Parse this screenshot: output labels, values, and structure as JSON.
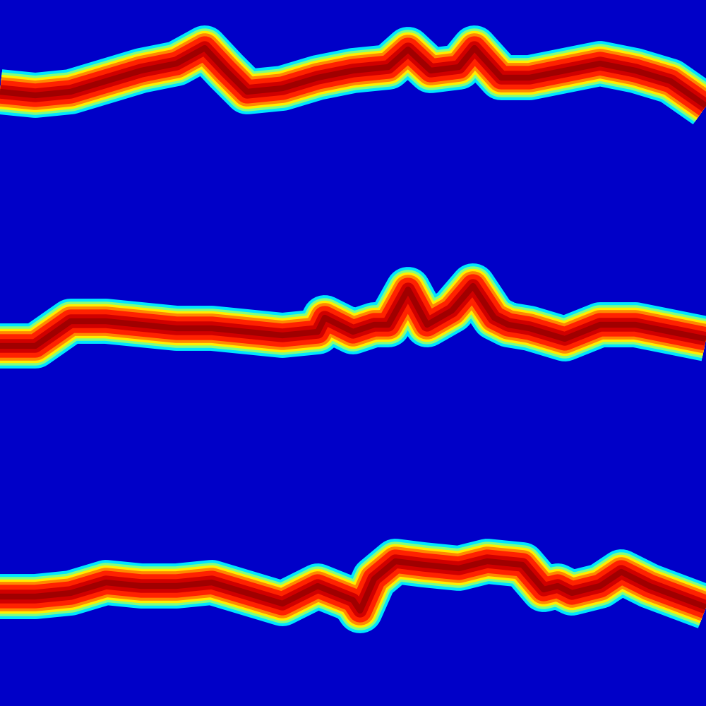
{
  "chart_data": {
    "type": "line",
    "xlim": [
      0,
      1000
    ],
    "ylim": [
      1000,
      0
    ],
    "tick_labels": false,
    "grid": false,
    "series": [
      {
        "x": [
          0,
          50,
          100,
          150,
          200,
          250,
          290,
          320,
          350,
          400,
          450,
          500,
          550,
          578,
          610,
          650,
          672,
          710,
          750,
          800,
          850,
          900,
          950,
          1000
        ],
        "values": [
          130,
          135,
          130,
          115,
          100,
          90,
          68,
          100,
          130,
          125,
          110,
          100,
          95,
          70,
          100,
          95,
          68,
          110,
          110,
          100,
          90,
          100,
          115,
          150
        ]
      },
      {
        "x": [
          0,
          50,
          100,
          150,
          200,
          250,
          300,
          350,
          400,
          450,
          460,
          500,
          530,
          550,
          578,
          605,
          640,
          670,
          700,
          720,
          750,
          800,
          850,
          900,
          950,
          1000
        ],
        "values": [
          490,
          490,
          455,
          455,
          460,
          465,
          465,
          470,
          475,
          470,
          450,
          470,
          460,
          460,
          410,
          460,
          440,
          405,
          450,
          460,
          465,
          480,
          460,
          460,
          470,
          480
        ]
      },
      {
        "x": [
          0,
          50,
          100,
          150,
          200,
          250,
          300,
          350,
          400,
          450,
          500,
          510,
          530,
          560,
          600,
          650,
          690,
          740,
          770,
          790,
          810,
          850,
          880,
          920,
          1000
        ],
        "values": [
          845,
          845,
          840,
          825,
          830,
          830,
          825,
          840,
          855,
          830,
          850,
          865,
          820,
          795,
          800,
          805,
          795,
          800,
          835,
          830,
          840,
          830,
          810,
          830,
          860
        ]
      }
    ]
  }
}
